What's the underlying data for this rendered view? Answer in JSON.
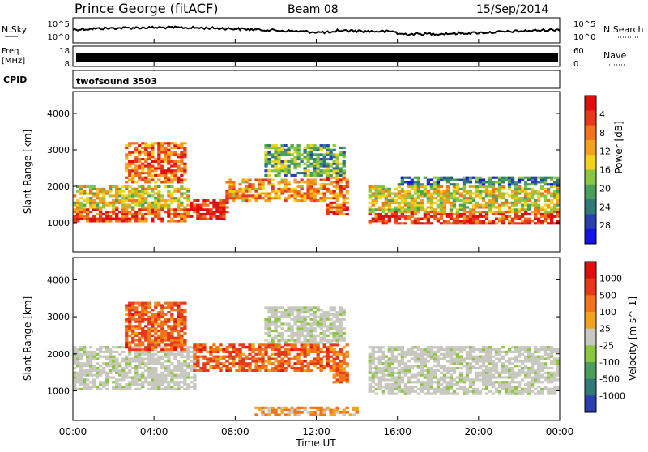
{
  "header": {
    "station": "Prince George (fitACF)",
    "beam": "Beam 08",
    "date": "15/Sep/2014"
  },
  "nsky_panel": {
    "left_label": "N.Sky",
    "right_label": "N.Search",
    "left_ticks": [
      "10^5",
      "10^0"
    ],
    "right_ticks": [
      "10^5",
      "10^0"
    ]
  },
  "freq_panel": {
    "left_label_1": "Freq.",
    "left_label_2": "[MHz]",
    "right_label": "Nave",
    "left_ticks": [
      "18",
      "8"
    ],
    "right_ticks": [
      "60",
      "0"
    ]
  },
  "cpid_panel": {
    "label": "CPID",
    "value": "twofsound 3503"
  },
  "time_axis": {
    "title": "Time UT",
    "ticks": [
      "00:00",
      "04:00",
      "08:00",
      "12:00",
      "16:00",
      "20:00",
      "00:00"
    ]
  },
  "chart_data": [
    {
      "type": "heatmap",
      "name": "power",
      "ylabel": "Slant Range [km]",
      "ylim": [
        200,
        4600
      ],
      "yticks": [
        "1000",
        "2000",
        "3000",
        "4000"
      ],
      "xlim_hours": [
        0,
        24
      ],
      "colorbar": {
        "label": "Power [dB]",
        "ticks": [
          "4",
          "8",
          "12",
          "16",
          "20",
          "24",
          "28"
        ],
        "colors": [
          "#1414e6",
          "#2a3fb0",
          "#2f7a78",
          "#4aa05a",
          "#8cc63e",
          "#f2d21a",
          "#f4a21c",
          "#f2731a",
          "#e83818",
          "#e00e0e"
        ]
      },
      "bands": [
        {
          "t": [
            0.0,
            5.8
          ],
          "r": [
            1000,
            1400
          ],
          "level": 0.85
        },
        {
          "t": [
            5.8,
            7.6
          ],
          "r": [
            1050,
            1650
          ],
          "level": 0.95
        },
        {
          "t": [
            0.0,
            5.8
          ],
          "r": [
            1400,
            2000
          ],
          "level": 0.55
        },
        {
          "t": [
            2.5,
            5.6
          ],
          "r": [
            2100,
            3200
          ],
          "level": 0.8
        },
        {
          "t": [
            7.6,
            12.5
          ],
          "r": [
            1600,
            2200
          ],
          "level": 0.7
        },
        {
          "t": [
            9.5,
            13.4
          ],
          "r": [
            2300,
            3150
          ],
          "level": 0.35
        },
        {
          "t": [
            12.5,
            13.6
          ],
          "r": [
            1200,
            2300
          ],
          "level": 0.8
        },
        {
          "t": [
            14.5,
            24.0
          ],
          "r": [
            950,
            1300
          ],
          "level": 0.9
        },
        {
          "t": [
            14.5,
            24.0
          ],
          "r": [
            1300,
            2000
          ],
          "level": 0.55
        },
        {
          "t": [
            16.0,
            24.0
          ],
          "r": [
            2000,
            2300
          ],
          "level": 0.25
        }
      ]
    },
    {
      "type": "heatmap",
      "name": "velocity",
      "ylabel": "Slant Range [km]",
      "ylim": [
        200,
        4600
      ],
      "yticks": [
        "1000",
        "2000",
        "3000",
        "4000"
      ],
      "xlim_hours": [
        0,
        24
      ],
      "colorbar": {
        "label": "Velocity [m s^-1]",
        "ticks": [
          "1000",
          "500",
          "100",
          "25",
          "-25",
          "-100",
          "-500",
          "-1000"
        ],
        "colors": [
          "#2a3fb0",
          "#2f7a78",
          "#4aa05a",
          "#8cc63e",
          "#c8c8c0",
          "#f4a21c",
          "#f2731a",
          "#e83818",
          "#e00e0e"
        ]
      },
      "bands": [
        {
          "t": [
            0.0,
            6.0
          ],
          "r": [
            1000,
            2200
          ],
          "vel": 0.0
        },
        {
          "t": [
            2.5,
            5.6
          ],
          "r": [
            2100,
            3400
          ],
          "vel": -0.6
        },
        {
          "t": [
            6.0,
            12.8
          ],
          "r": [
            1500,
            2300
          ],
          "vel": -0.6
        },
        {
          "t": [
            9.5,
            13.4
          ],
          "r": [
            2300,
            3300
          ],
          "vel": 0.0
        },
        {
          "t": [
            12.8,
            13.6
          ],
          "r": [
            1200,
            2300
          ],
          "vel": -0.5
        },
        {
          "t": [
            14.5,
            24.0
          ],
          "r": [
            900,
            2200
          ],
          "vel": 0.0
        },
        {
          "t": [
            9.0,
            14.0
          ],
          "r": [
            300,
            600
          ],
          "vel": -0.3
        }
      ]
    }
  ]
}
